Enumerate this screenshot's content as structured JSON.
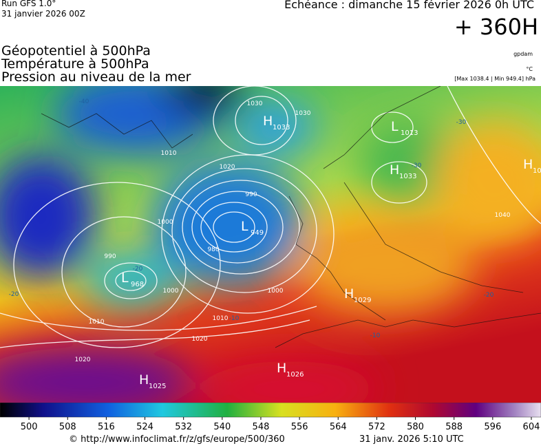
{
  "header": {
    "run": "Run GFS 1.0°",
    "run_date": "31 janvier 2026 00Z",
    "forecast": "Echéance : dimanche 15 février 2026 0h UTC",
    "lead": "+ 360H",
    "layers": [
      "Géopotentiel à 500hPa",
      "Température à 500hPa",
      "Pression au niveau de la mer"
    ],
    "units": [
      "gpdam",
      "°C"
    ],
    "pressure_range": "[Max 1038.4 | Min 949.4] hPa"
  },
  "map": {
    "centers": [
      {
        "letter": "H",
        "value": 1033
      },
      {
        "letter": "L",
        "value": 1013
      },
      {
        "letter": "H",
        "value": 1033
      },
      {
        "letter": "H",
        "value": 10
      },
      {
        "letter": "L",
        "value": 949
      },
      {
        "letter": "L",
        "value": 968
      },
      {
        "letter": "H",
        "value": 1029
      },
      {
        "letter": "H",
        "value": 1026
      },
      {
        "letter": "H",
        "value": 1025
      }
    ],
    "isobar_labels": [
      1030,
      1020,
      1010,
      990,
      980,
      1000,
      1000,
      1010,
      1020,
      1020,
      1010,
      1000,
      990,
      1040,
      1030
    ],
    "temperature_labels": [
      -40,
      -30,
      -30,
      -20,
      -20,
      -20,
      -10,
      -10
    ]
  },
  "colorbar": {
    "range": [
      494,
      606
    ],
    "ticks": [
      500,
      508,
      516,
      524,
      532,
      540,
      548,
      556,
      564,
      572,
      580,
      588,
      596,
      604
    ]
  },
  "footer": {
    "source": "© http://www.infoclimat.fr/z/gfs/europe/500/360",
    "timestamp": "31 janv. 2026  5:10 UTC"
  }
}
